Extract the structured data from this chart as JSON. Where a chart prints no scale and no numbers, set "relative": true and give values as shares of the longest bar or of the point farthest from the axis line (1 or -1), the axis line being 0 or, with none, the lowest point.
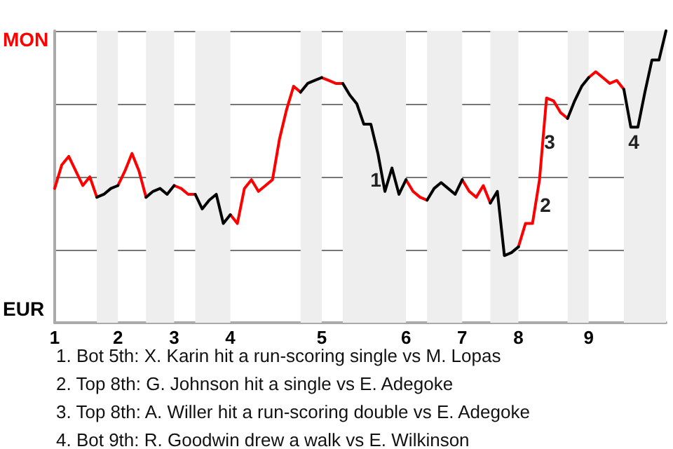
{
  "chart_data": {
    "type": "line",
    "relative": true,
    "categories": [
      "1",
      null,
      null,
      null,
      null,
      null,
      null,
      null,
      null,
      "2",
      null,
      null,
      null,
      null,
      null,
      null,
      null,
      "3",
      null,
      null,
      null,
      null,
      null,
      null,
      null,
      "4",
      null,
      null,
      null,
      null,
      null,
      null,
      null,
      null,
      null,
      null,
      null,
      null,
      "5",
      null,
      null,
      null,
      null,
      null,
      null,
      null,
      null,
      null,
      null,
      null,
      "6",
      null,
      null,
      null,
      null,
      null,
      null,
      null,
      "7",
      null,
      null,
      null,
      null,
      null,
      null,
      null,
      "8",
      null,
      null,
      null,
      null,
      null,
      null,
      null,
      null,
      null,
      "9",
      null,
      null,
      null,
      null,
      null,
      null,
      null,
      null,
      null,
      null,
      null
    ],
    "grid": "y",
    "marker": "none",
    "line_style": "solid",
    "series": [
      {
        "color": "#ff0000",
        "values": [
          0.46,
          0.54,
          0.57,
          0.52,
          0.47,
          0.5,
          0.43,
          null,
          null,
          0.47,
          0.52,
          0.58,
          0.52,
          0.43,
          null,
          null,
          null,
          0.47,
          0.46,
          0.44,
          0.44,
          null,
          null,
          null,
          null,
          0.37,
          0.34,
          0.46,
          0.49,
          0.45,
          0.47,
          0.49,
          0.63,
          0.73,
          0.81,
          0.79,
          null,
          null,
          0.84,
          0.83,
          0.82,
          0.82,
          null,
          null,
          null,
          null,
          null,
          null,
          null,
          null,
          0.49,
          0.45,
          0.43,
          0.42,
          null,
          null,
          null,
          null,
          0.49,
          0.45,
          0.43,
          0.47,
          0.41,
          null,
          null,
          null,
          0.26,
          0.34,
          0.34,
          0.49,
          0.77,
          0.76,
          0.72,
          0.7,
          null,
          null,
          0.84,
          0.86,
          0.84,
          0.82,
          0.83,
          0.8,
          null,
          null,
          null,
          null,
          null,
          null
        ]
      },
      {
        "color": "#000000",
        "values": [
          null,
          null,
          null,
          null,
          null,
          null,
          0.43,
          0.44,
          0.46,
          0.47,
          null,
          null,
          null,
          0.43,
          0.45,
          0.46,
          0.44,
          0.47,
          null,
          null,
          0.44,
          0.39,
          0.42,
          0.44,
          0.34,
          0.37,
          null,
          null,
          null,
          null,
          null,
          null,
          null,
          null,
          null,
          0.79,
          0.82,
          0.83,
          0.84,
          null,
          null,
          0.82,
          0.78,
          0.75,
          0.68,
          0.68,
          0.58,
          0.45,
          0.53,
          0.44,
          0.49,
          null,
          null,
          0.42,
          0.46,
          0.48,
          0.46,
          0.44,
          0.49,
          null,
          null,
          null,
          0.41,
          0.45,
          0.23,
          0.24,
          0.26,
          null,
          null,
          null,
          null,
          null,
          null,
          0.7,
          0.76,
          0.81,
          0.84,
          null,
          null,
          null,
          null,
          0.8,
          0.67,
          0.67,
          0.79,
          0.9,
          0.9,
          1.0
        ]
      }
    ],
    "annotations": [
      "MON",
      "EUR",
      "1",
      "2",
      "3",
      "4",
      "1. Bot 5th: X. Karin hit a run-scoring single vs M. Lopas",
      "2. Top 8th: G. Johnson hit a single vs E. Adegoke",
      "3. Top 8th: A. Willer hit a run-scoring double vs E. Adegoke",
      "4. Bot 9th: R. Goodwin drew a walk vs E. Wilkinson"
    ]
  }
}
